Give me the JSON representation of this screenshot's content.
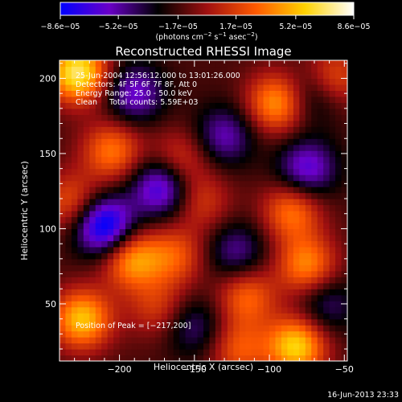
{
  "chart_data": {
    "type": "heatmap",
    "title": "Reconstructed RHESSI Image",
    "xlabel": "Heliocentric X (arcsec)",
    "ylabel": "Heliocentric Y (arcsec)",
    "xlim": [
      -240,
      -48
    ],
    "ylim": [
      12,
      212
    ],
    "x_ticks": [
      -200,
      -150,
      -100,
      -50
    ],
    "y_ticks": [
      50,
      100,
      150,
      200
    ],
    "x_tick_labels": [
      "−200",
      "−150",
      "−100",
      "−50"
    ],
    "y_tick_labels": [
      "50",
      "100",
      "150",
      "200"
    ],
    "colorbar": {
      "tick_values": [
        -8.6e-05,
        -5.2e-05,
        -1.7e-05,
        1.7e-05,
        5.2e-05,
        8.6e-05
      ],
      "tick_labels": [
        "−8.6e−05",
        "−5.2e−05",
        "−1.7e−05",
        "1.7e−05",
        "5.2e−05",
        "8.6e−05"
      ],
      "range": [
        -8.6e-05,
        8.6e-05
      ],
      "units_main": "(photons cm",
      "units_exp1": "−2",
      "units_mid": " s",
      "units_exp2": "−1",
      "units_mid2": " asec",
      "units_exp3": "−2",
      "units_end": ")",
      "colors": [
        "#0000ff",
        "#6a00c8",
        "#000000",
        "#a01010",
        "#ff5a00",
        "#ffd200",
        "#ffffff"
      ]
    },
    "annotations": [
      "25-Jun-2004 12:56:12.000 to 13:01:26.000",
      "Detectors: 4F 5F 6F 7F 8F, Att 0",
      "Energy Range: 25.0 - 50.0 keV",
      "Clean     Total counts: 5.59E+03"
    ],
    "peak_label": "Position of Peak = [−217,200]",
    "peak": [
      -217,
      200
    ],
    "sources": [
      {
        "x": -228,
        "y": 204,
        "value": 8.6e-05
      },
      {
        "x": -95,
        "y": 184,
        "value": 6e-05
      },
      {
        "x": -58,
        "y": 200,
        "value": 4.5e-05
      },
      {
        "x": -205,
        "y": 152,
        "value": 5e-05
      },
      {
        "x": -160,
        "y": 146,
        "value": 3.5e-05
      },
      {
        "x": -145,
        "y": 118,
        "value": 3e-05
      },
      {
        "x": -85,
        "y": 112,
        "value": 5e-05
      },
      {
        "x": -75,
        "y": 76,
        "value": 5.5e-05
      },
      {
        "x": -232,
        "y": 118,
        "value": 4e-05
      },
      {
        "x": -192,
        "y": 80,
        "value": 6e-05
      },
      {
        "x": -163,
        "y": 82,
        "value": 4e-05
      },
      {
        "x": -225,
        "y": 40,
        "value": 7e-05
      },
      {
        "x": -175,
        "y": 48,
        "value": 3e-05
      },
      {
        "x": -115,
        "y": 55,
        "value": 4.5e-05
      },
      {
        "x": -82,
        "y": 22,
        "value": 7.5e-05
      },
      {
        "x": -120,
        "y": 20,
        "value": 4e-05
      },
      {
        "x": -210,
        "y": 102,
        "value": -8e-05
      },
      {
        "x": -172,
        "y": 128,
        "value": -6e-05
      },
      {
        "x": -190,
        "y": 190,
        "value": -4.5e-05
      },
      {
        "x": -130,
        "y": 162,
        "value": -4e-05
      },
      {
        "x": -75,
        "y": 140,
        "value": -5e-05
      },
      {
        "x": -70,
        "y": 190,
        "value": -3.5e-05
      },
      {
        "x": -122,
        "y": 85,
        "value": -3.5e-05
      },
      {
        "x": -150,
        "y": 35,
        "value": -3e-05
      },
      {
        "x": -62,
        "y": 50,
        "value": -3e-05
      }
    ],
    "background": -1.6e-05,
    "grid": false
  },
  "footer": {
    "timestamp": "16-Jun-2013 23:33"
  }
}
